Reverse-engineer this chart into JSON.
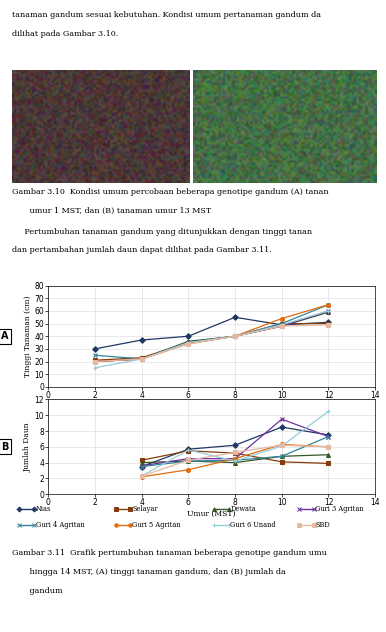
{
  "top_text_lines": [
    "tanaman gandum sesuai kebutuhan. Kondisi umum pertanaman gandum da",
    "dilihat pada Gambar 3.10."
  ],
  "caption_310_line1": "Gambar 3.10  Kondisi umum percobaan beberapa genotipe gandum (A) tanan",
  "caption_310_line2": "       umur 1 MST, dan (B) tanaman umur 13 MST",
  "middle_text_line1": "     Pertumbuhan tanaman gandum yang ditunjukkan dengan tinggi tanan",
  "middle_text_line2": "dan pertambahan jumlah daun dapat dilihat pada Gambar 3.11.",
  "x_values": [
    2,
    4,
    6,
    8,
    10,
    12
  ],
  "x_values_b": [
    4,
    6,
    8,
    10,
    12
  ],
  "series_A": {
    "Nias": [
      30,
      37,
      40,
      55,
      49,
      51
    ],
    "Selayar": [
      21,
      23,
      35,
      40,
      50,
      50
    ],
    "Dewata": [
      20,
      22,
      36,
      40,
      48,
      59
    ],
    "Guri 3 Agritan": [
      20,
      22,
      35,
      40,
      48,
      60
    ],
    "Guri 4 Agritan": [
      25,
      22,
      35,
      40,
      50,
      65
    ],
    "Guri 5 Agritan": [
      20,
      22,
      34,
      40,
      54,
      65
    ],
    "Guri 6 Unand": [
      15,
      22,
      35,
      40,
      49,
      60
    ],
    "SBD": [
      20,
      22,
      34,
      40,
      48,
      49
    ]
  },
  "series_B": {
    "Nias": [
      3.5,
      5.7,
      6.2,
      8.5,
      7.5
    ],
    "Selayar": [
      4.3,
      5.5,
      5.2,
      4.1,
      3.9
    ],
    "Dewata": [
      4.0,
      4.2,
      4.0,
      4.8,
      5.0
    ],
    "Guri 3 Agritan": [
      3.6,
      4.5,
      4.5,
      9.5,
      7.3
    ],
    "Guri 4 Agritan": [
      3.5,
      4.2,
      4.3,
      4.8,
      7.3
    ],
    "Guri 5 Agritan": [
      2.2,
      3.1,
      4.5,
      6.3,
      6.0
    ],
    "Guri 6 Unand": [
      2.3,
      5.6,
      4.2,
      6.1,
      10.5
    ],
    "SBD": [
      2.3,
      4.3,
      5.3,
      6.2,
      6.0
    ]
  },
  "colors": {
    "Nias": "#1F3864",
    "Selayar": "#843C0C",
    "Dewata": "#375623",
    "Guri 3 Agritan": "#7030A0",
    "Guri 4 Agritan": "#31849B",
    "Guri 5 Agritan": "#E26B0A",
    "Guri 6 Unand": "#92CDDC",
    "SBD": "#E6B8A2"
  },
  "markers": {
    "Nias": "D",
    "Selayar": "s",
    "Dewata": "^",
    "Guri 3 Agritan": "x",
    "Guri 4 Agritan": "x",
    "Guri 5 Agritan": "o",
    "Guri 6 Unand": "+",
    "SBD": "s"
  },
  "xlabel": "Umur (MST)",
  "ylabel_A": "Tinggi Tanaman (cm)",
  "ylabel_B": "Jumlah Daun",
  "xlim": [
    0,
    14
  ],
  "ylim_A": [
    0,
    80
  ],
  "ylim_B": [
    0,
    12
  ],
  "xticks": [
    0,
    2,
    4,
    6,
    8,
    10,
    12,
    14
  ],
  "yticks_A": [
    0,
    10,
    20,
    30,
    40,
    50,
    60,
    70,
    80
  ],
  "yticks_B": [
    0,
    2,
    4,
    6,
    8,
    10,
    12
  ],
  "caption_311_line1": "Gambar 3.11  Grafik pertumbuhan tanaman beberapa genotipe gandum umu",
  "caption_311_line2": "       hingga 14 MST, (A) tinggi tanaman gandum, dan (B) jumlah da",
  "caption_311_line3": "       gandum",
  "bg_color": "#FFFFFF",
  "grid_color": "#D9D9D9",
  "series_order": [
    "Nias",
    "Selayar",
    "Dewata",
    "Guri 3 Agritan",
    "Guri 4 Agritan",
    "Guri 5 Agritan",
    "Guri 6 Unand",
    "SBD"
  ]
}
